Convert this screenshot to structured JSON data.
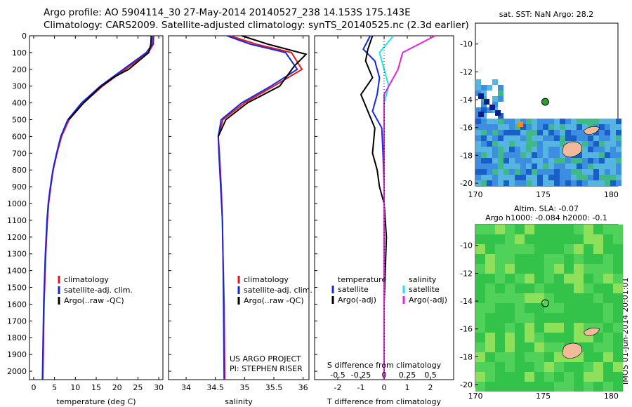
{
  "header": {
    "line1": "Argo profile: AO 5904114_30 27-May-2014 20140527_238 14.153S 175.143E",
    "line2": "Climatology: CARS2009. Satellite-adjusted climatology: synTS_20140525.nc (2.3d earlier)"
  },
  "side_stamp": "IMOS 01-Jun-2014 20:01:01",
  "colors": {
    "climatology": "#e8141e",
    "satellite": "#1428dc",
    "argo": "#000000",
    "salinity_satellite": "#1ee6e6",
    "salinity_argo": "#e61ee6",
    "land": "#f2b99b"
  },
  "chart_data": [
    {
      "id": "temperature",
      "type": "line",
      "xlabel": "temperature (deg C)",
      "ylabel": "",
      "xlim": [
        -1,
        31
      ],
      "ylim": [
        2050,
        0
      ],
      "y_reversed": true,
      "xticks": [
        0,
        5,
        10,
        15,
        20,
        25,
        30
      ],
      "yticks": [
        0,
        100,
        200,
        300,
        400,
        500,
        600,
        700,
        800,
        900,
        1000,
        1100,
        1200,
        1300,
        1400,
        1500,
        1600,
        1700,
        1800,
        1900,
        2000
      ],
      "legend": [
        "climatology",
        "satellite-adj. clim.",
        "Argo(..raw -QC)"
      ],
      "series": [
        {
          "name": "climatology",
          "color": "#e8141e",
          "x": [
            28.8,
            28.7,
            27.5,
            22,
            16.5,
            12,
            8.5,
            6.7,
            5.6,
            4.7,
            4.1,
            3.6,
            3.3,
            2.9,
            2.5,
            2.2
          ],
          "y": [
            0,
            50,
            100,
            200,
            300,
            400,
            500,
            600,
            700,
            800,
            900,
            1000,
            1100,
            1300,
            1600,
            2050
          ]
        },
        {
          "name": "satellite-adj. clim.",
          "color": "#1428dc",
          "x": [
            28.6,
            28.5,
            27,
            21.5,
            16,
            11.5,
            8.2,
            6.5,
            5.5,
            4.6,
            4.0,
            3.5,
            3.2,
            2.8,
            2.4,
            2.1
          ],
          "y": [
            0,
            50,
            100,
            200,
            300,
            400,
            500,
            600,
            700,
            800,
            900,
            1000,
            1100,
            1300,
            1600,
            2050
          ]
        },
        {
          "name": "Argo(..raw -QC)",
          "color": "#000000",
          "x": [
            28.2,
            28.1,
            27.6,
            22.8,
            19,
            15.8,
            12,
            8.4
          ],
          "y": [
            0,
            50,
            100,
            200,
            250,
            310,
            400,
            500
          ]
        }
      ]
    },
    {
      "id": "salinity",
      "type": "line",
      "xlabel": "salinity",
      "ylabel": "",
      "xlim": [
        33.7,
        36.1
      ],
      "ylim": [
        2050,
        0
      ],
      "y_reversed": true,
      "xticks": [
        34,
        34.5,
        35,
        35.5,
        36
      ],
      "legend": [
        "climatology",
        "satellite-adj. clim.",
        "Argo(..raw -QC)"
      ],
      "annotation": [
        "US ARGO PROJECT",
        "PI: STEPHEN RISER"
      ],
      "series": [
        {
          "name": "climatology",
          "color": "#e8141e",
          "x": [
            34.75,
            35.2,
            35.8,
            35.98,
            35.5,
            35,
            34.63,
            34.55,
            34.57,
            34.6,
            34.62,
            34.63,
            34.65,
            34.66
          ],
          "y": [
            0,
            50,
            100,
            200,
            300,
            400,
            500,
            600,
            700,
            900,
            1100,
            1300,
            1600,
            2050
          ]
        },
        {
          "name": "satellite-adj. clim.",
          "color": "#1428dc",
          "x": [
            34.7,
            35.1,
            35.7,
            35.9,
            35.45,
            34.95,
            34.6,
            34.55,
            34.56,
            34.59,
            34.62,
            34.63,
            34.64,
            34.65
          ],
          "y": [
            0,
            50,
            100,
            200,
            300,
            400,
            500,
            600,
            700,
            900,
            1100,
            1300,
            1600,
            2050
          ]
        },
        {
          "name": "Argo(..raw -QC)",
          "color": "#000000",
          "x": [
            34.95,
            35.4,
            36.05,
            35.85,
            35.6,
            35.05,
            34.68,
            34.55
          ],
          "y": [
            0,
            50,
            110,
            180,
            300,
            400,
            500,
            600
          ]
        }
      ]
    },
    {
      "id": "differences",
      "type": "line",
      "xlabel": "T difference from climatology",
      "xlabel_top": "S difference from climatology",
      "ylim": [
        2050,
        0
      ],
      "y_reversed": true,
      "xlim": [
        -3,
        3
      ],
      "xticks": [
        -2,
        -1,
        0,
        1,
        2
      ],
      "xlim_top": [
        -0.75,
        0.75
      ],
      "xticks_top": [
        -0.5,
        -0.25,
        0,
        0.25,
        0.5
      ],
      "legend_left": {
        "header": "temperature",
        "items": [
          "satellite",
          "Argo(-adj)"
        ]
      },
      "legend_right": {
        "header": "salinity",
        "items": [
          "satellite",
          "Argo(-adj)"
        ]
      },
      "series": [
        {
          "name": "temperature satellite",
          "color": "#1428dc",
          "x": [
            -0.6,
            -0.9,
            -0.4,
            -0.2,
            -0.3,
            -0.5,
            -0.1,
            -0.05,
            0,
            0,
            0
          ],
          "y": [
            0,
            80,
            150,
            250,
            350,
            450,
            550,
            700,
            900,
            1200,
            2050
          ]
        },
        {
          "name": "temperature Argo(-adj)",
          "color": "#000000",
          "x": [
            -0.5,
            -0.7,
            -0.8,
            -0.5,
            -1.0,
            -0.7,
            -0.4,
            -0.5,
            -0.3,
            -0.2,
            0,
            0.1,
            0,
            0
          ],
          "y": [
            0,
            80,
            150,
            250,
            350,
            450,
            550,
            700,
            800,
            900,
            1000,
            1200,
            1600,
            2050
          ]
        },
        {
          "name": "salinity satellite",
          "color": "#1ee6e6",
          "x": [
            0.1,
            -0.05,
            0,
            0.05,
            0,
            0,
            0
          ],
          "y": [
            0,
            100,
            200,
            300,
            400,
            600,
            2050
          ]
        },
        {
          "name": "salinity Argo(-adj)",
          "color": "#e61ee6",
          "x": [
            0.55,
            0.2,
            0.15,
            0,
            0,
            0
          ],
          "y": [
            0,
            100,
            200,
            350,
            500,
            2050
          ]
        }
      ]
    },
    {
      "id": "sst_map",
      "type": "heatmap",
      "title": "sat. SST: NaN Argo: 28.2",
      "xlim": [
        170,
        180.5
      ],
      "ylim": [
        -20.2,
        -8.5
      ],
      "xticks": [
        170,
        175,
        180
      ],
      "yticks": [
        -10,
        -12,
        -14,
        -16,
        -18,
        -20
      ],
      "marker": {
        "lon": 175.143,
        "lat": -14.153,
        "fill": "#2aa02a"
      }
    },
    {
      "id": "sla_map",
      "type": "heatmap",
      "title": "Altim. SLA: -0.07",
      "subtitle": "Argo h1000: -0.084 h2000: -0.1",
      "xlim": [
        170,
        180.5
      ],
      "ylim": [
        -20.2,
        -8.5
      ],
      "xticks": [
        170,
        175,
        180
      ],
      "yticks": [
        -10,
        -12,
        -14,
        -16,
        -18,
        -20
      ],
      "marker": {
        "lon": 175.143,
        "lat": -14.153,
        "fill": "none"
      }
    }
  ]
}
